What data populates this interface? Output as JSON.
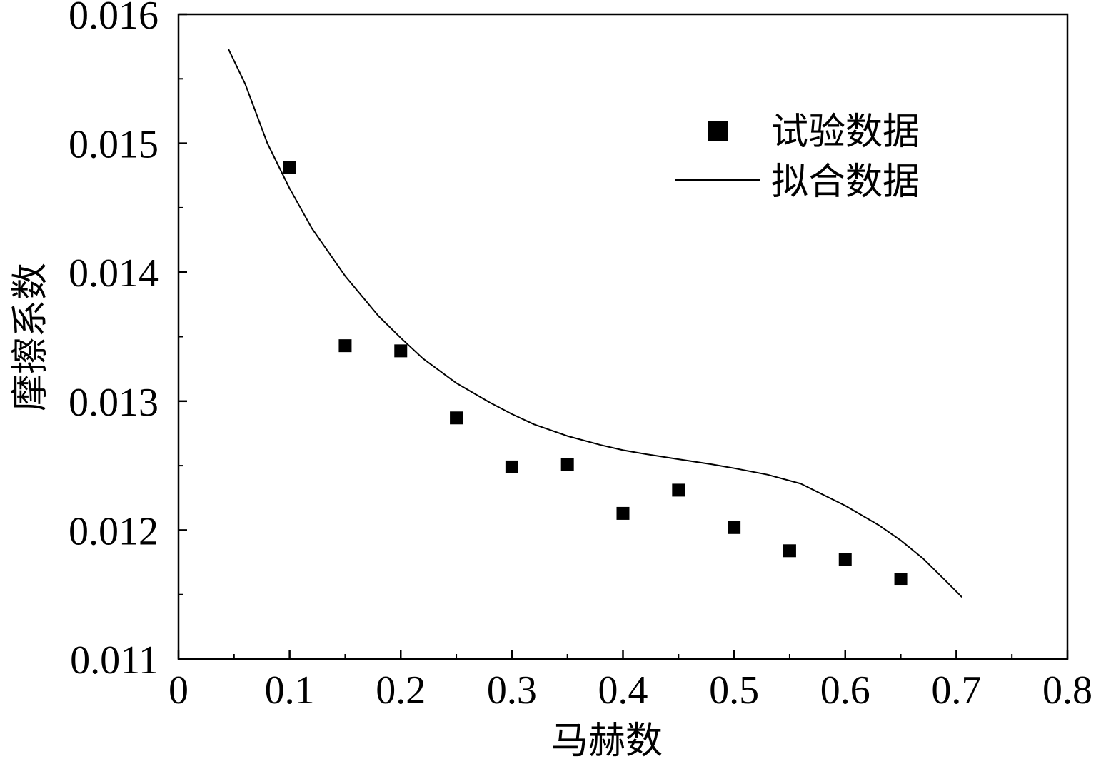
{
  "chart_data": {
    "type": "scatter",
    "xlabel": "马赫数",
    "ylabel": "摩擦系数",
    "xlim": [
      0,
      0.8
    ],
    "ylim": [
      0.011,
      0.016
    ],
    "x_ticks": [
      "0",
      "0.1",
      "0.2",
      "0.3",
      "0.4",
      "0.5",
      "0.6",
      "0.7",
      "0.8"
    ],
    "y_ticks": [
      "0.011",
      "0.012",
      "0.013",
      "0.014",
      "0.015",
      "0.016"
    ],
    "x_tick_values": [
      0,
      0.1,
      0.2,
      0.3,
      0.4,
      0.5,
      0.6,
      0.7,
      0.8
    ],
    "y_tick_values": [
      0.011,
      0.012,
      0.013,
      0.014,
      0.015,
      0.016
    ],
    "legend_position": "top-right",
    "series": [
      {
        "name": "试验数据",
        "kind": "markers",
        "marker": "square",
        "x": [
          0.1,
          0.15,
          0.2,
          0.25,
          0.3,
          0.35,
          0.4,
          0.45,
          0.5,
          0.55,
          0.6,
          0.65
        ],
        "y": [
          0.01481,
          0.01343,
          0.01339,
          0.01287,
          0.01249,
          0.01251,
          0.01213,
          0.01231,
          0.01202,
          0.01184,
          0.01177,
          0.01162
        ]
      },
      {
        "name": "拟合数据",
        "kind": "line",
        "x": [
          0.045,
          0.06,
          0.08,
          0.1,
          0.12,
          0.15,
          0.18,
          0.2,
          0.22,
          0.25,
          0.28,
          0.3,
          0.32,
          0.35,
          0.38,
          0.4,
          0.42,
          0.45,
          0.48,
          0.5,
          0.53,
          0.56,
          0.6,
          0.63,
          0.65,
          0.67,
          0.69,
          0.705
        ],
        "y": [
          0.01573,
          0.01546,
          0.015,
          0.01465,
          0.01434,
          0.01397,
          0.01366,
          0.01349,
          0.01333,
          0.01314,
          0.01299,
          0.0129,
          0.01282,
          0.01273,
          0.01266,
          0.01262,
          0.01259,
          0.01255,
          0.01251,
          0.01248,
          0.01243,
          0.01236,
          0.01219,
          0.01204,
          0.01192,
          0.01178,
          0.01161,
          0.01148
        ]
      }
    ],
    "colors": {
      "axis": "#000000",
      "marker": "#000000",
      "line": "#000000"
    }
  }
}
